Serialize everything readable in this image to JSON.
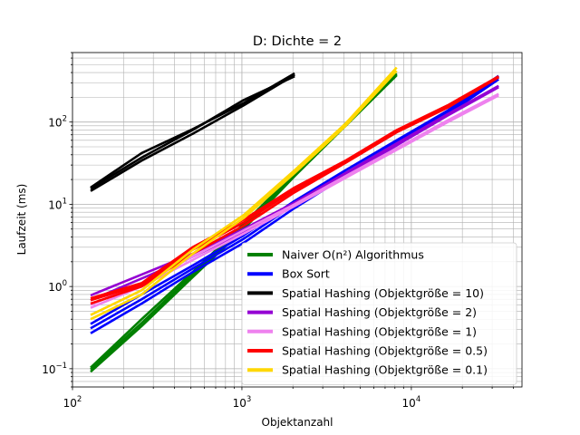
{
  "chart_data": {
    "type": "line",
    "title": "D: Dichte = 2",
    "xlabel": "Objektanzahl",
    "ylabel": "Laufzeit (ms)",
    "xscale": "log",
    "yscale": "log",
    "xlim": [
      100,
      45000
    ],
    "ylim": [
      0.06,
      700
    ],
    "grid": "major and minor",
    "legend_position": "lower-right",
    "x_ticks": [
      {
        "value": 100,
        "base": "10",
        "exp": "2"
      },
      {
        "value": 1000,
        "base": "10",
        "exp": "3"
      },
      {
        "value": 10000,
        "base": "10",
        "exp": "4"
      }
    ],
    "y_ticks": [
      {
        "value": 0.1,
        "base": "10",
        "exp": "−1"
      },
      {
        "value": 1,
        "base": "10",
        "exp": "0"
      },
      {
        "value": 10,
        "base": "10",
        "exp": "1"
      },
      {
        "value": 100,
        "base": "10",
        "exp": "2"
      }
    ],
    "legend": [
      {
        "label": "Naiver O(n²) Algorithmus",
        "color": "#008000"
      },
      {
        "label": "Box Sort",
        "color": "#0000ff"
      },
      {
        "label": "Spatial Hashing (Objektgröße = 10)",
        "color": "#000000"
      },
      {
        "label": "Spatial Hashing (Objektgröße = 2)",
        "color": "#9400d3"
      },
      {
        "label": "Spatial Hashing (Objektgröße = 1)",
        "color": "#ee82ee"
      },
      {
        "label": "Spatial Hashing (Objektgröße = 0.5)",
        "color": "#ff0000"
      },
      {
        "label": "Spatial Hashing (Objektgröße = 0.1)",
        "color": "#ffd700"
      }
    ],
    "series": [
      {
        "color": "#008000",
        "runs": [
          {
            "x": [
              128,
              256,
              512,
              1024,
              2048,
              4096,
              8192
            ],
            "y": [
              0.092,
              0.33,
              1.3,
              5.0,
              22,
              90,
              370
            ]
          },
          {
            "x": [
              128,
              256,
              512,
              1024,
              2048,
              4096,
              8192
            ],
            "y": [
              0.098,
              0.36,
              1.4,
              5.4,
              23,
              93,
              380
            ]
          },
          {
            "x": [
              128,
              256,
              512,
              1024,
              2048,
              4096,
              8192
            ],
            "y": [
              0.103,
              0.4,
              1.5,
              5.8,
              24,
              96,
              390
            ]
          }
        ]
      },
      {
        "color": "#0000ff",
        "runs": [
          {
            "x": [
              128,
              256,
              512,
              1024,
              2048,
              4096,
              8192,
              16384,
              32768
            ],
            "y": [
              0.27,
              0.62,
              1.5,
              3.4,
              9,
              22,
              52,
              125,
              330
            ]
          },
          {
            "x": [
              128,
              256,
              512,
              1024,
              2048,
              4096,
              8192,
              16384,
              32768
            ],
            "y": [
              0.31,
              0.7,
              1.65,
              3.8,
              10,
              24,
              56,
              130,
              350
            ]
          },
          {
            "x": [
              128,
              256,
              512,
              1024,
              2048,
              4096,
              8192,
              16384,
              32768
            ],
            "y": [
              0.35,
              0.8,
              1.8,
              4.2,
              11,
              26,
              60,
              138,
              365
            ]
          }
        ]
      },
      {
        "color": "#000000",
        "runs": [
          {
            "x": [
              128,
              256,
              512,
              1024,
              2048
            ],
            "y": [
              14.5,
              34,
              72,
              160,
              375
            ]
          },
          {
            "x": [
              128,
              256,
              512,
              1024,
              2048
            ],
            "y": [
              15.5,
              37,
              80,
              185,
              360
            ]
          },
          {
            "x": [
              128,
              256,
              512,
              1024,
              2048
            ],
            "y": [
              16,
              42,
              82,
              170,
              390
            ]
          }
        ]
      },
      {
        "color": "#9400d3",
        "runs": [
          {
            "x": [
              128,
              256,
              512,
              1024,
              2048,
              4096,
              8192,
              16384,
              32768
            ],
            "y": [
              0.68,
              1.25,
              2.3,
              4.6,
              10,
              23,
              52,
              120,
              265
            ]
          },
          {
            "x": [
              128,
              256,
              512,
              1024,
              2048,
              4096,
              8192,
              16384,
              32768
            ],
            "y": [
              0.78,
              1.4,
              2.5,
              5.0,
              10.5,
              24,
              55,
              125,
              275
            ]
          }
        ]
      },
      {
        "color": "#ee82ee",
        "runs": [
          {
            "x": [
              128,
              256,
              512,
              1024,
              2048,
              4096,
              8192,
              16384,
              32768
            ],
            "y": [
              0.55,
              1.0,
              2.1,
              4.4,
              9.5,
              21,
              46,
              100,
              210
            ]
          },
          {
            "x": [
              128,
              256,
              512,
              1024,
              2048,
              4096,
              8192,
              16384,
              32768
            ],
            "y": [
              0.6,
              1.1,
              2.3,
              4.8,
              10,
              22,
              48,
              105,
              220
            ]
          }
        ]
      },
      {
        "color": "#ff0000",
        "runs": [
          {
            "x": [
              128,
              256,
              512,
              1024,
              2048,
              4096,
              8192,
              16384,
              32768
            ],
            "y": [
              0.62,
              1.0,
              2.5,
              5.5,
              14,
              32,
              75,
              150,
              350
            ]
          },
          {
            "x": [
              128,
              256,
              512,
              1024,
              2048,
              4096,
              8192,
              16384,
              32768
            ],
            "y": [
              0.68,
              1.05,
              2.8,
              6.0,
              15,
              33,
              78,
              155,
              355
            ]
          },
          {
            "x": [
              128,
              256,
              512,
              1024,
              2048,
              4096,
              8192,
              16384,
              32768
            ],
            "y": [
              0.72,
              1.1,
              3.0,
              6.5,
              16,
              34,
              80,
              160,
              360
            ]
          }
        ]
      },
      {
        "color": "#ffd700",
        "runs": [
          {
            "x": [
              128,
              256,
              512,
              1024,
              2048,
              4096,
              8192
            ],
            "y": [
              0.4,
              0.8,
              2.5,
              6.8,
              24,
              90,
              420
            ]
          },
          {
            "x": [
              128,
              256,
              512,
              1024,
              2048,
              4096,
              8192
            ],
            "y": [
              0.45,
              0.9,
              2.8,
              7.4,
              26,
              96,
              460
            ]
          }
        ]
      }
    ]
  }
}
